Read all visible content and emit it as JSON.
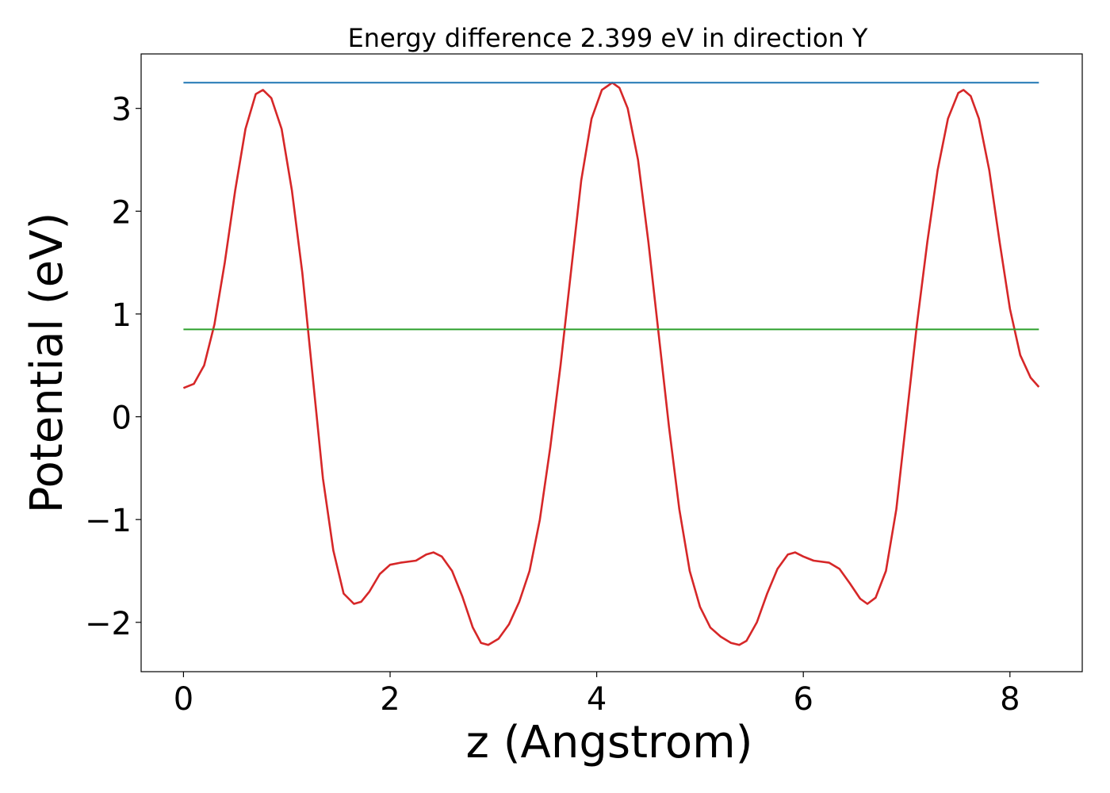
{
  "chart_data": {
    "type": "line",
    "title": "Energy difference 2.399 eV in direction Y",
    "xlabel": "z (Angstrom)",
    "ylabel": "Potential (eV)",
    "xlim": [
      -0.41,
      8.7
    ],
    "ylim": [
      -2.48,
      3.53
    ],
    "xticks": [
      {
        "value": 0,
        "label": "0"
      },
      {
        "value": 2,
        "label": "2"
      },
      {
        "value": 4,
        "label": "4"
      },
      {
        "value": 6,
        "label": "6"
      },
      {
        "value": 8,
        "label": "8"
      }
    ],
    "yticks": [
      {
        "value": -2,
        "label": "−2"
      },
      {
        "value": -1,
        "label": "−1"
      },
      {
        "value": 0,
        "label": "0"
      },
      {
        "value": 1,
        "label": "1"
      },
      {
        "value": 2,
        "label": "2"
      },
      {
        "value": 3,
        "label": "3"
      }
    ],
    "grid": false,
    "series": [
      {
        "color": "#d62728",
        "points": [
          [
            0.0,
            0.28
          ],
          [
            0.1,
            0.32
          ],
          [
            0.2,
            0.5
          ],
          [
            0.3,
            0.9
          ],
          [
            0.4,
            1.5
          ],
          [
            0.5,
            2.2
          ],
          [
            0.6,
            2.8
          ],
          [
            0.7,
            3.14
          ],
          [
            0.77,
            3.18
          ],
          [
            0.85,
            3.1
          ],
          [
            0.95,
            2.8
          ],
          [
            1.05,
            2.2
          ],
          [
            1.15,
            1.4
          ],
          [
            1.25,
            0.4
          ],
          [
            1.35,
            -0.6
          ],
          [
            1.45,
            -1.3
          ],
          [
            1.55,
            -1.72
          ],
          [
            1.65,
            -1.82
          ],
          [
            1.72,
            -1.8
          ],
          [
            1.8,
            -1.7
          ],
          [
            1.9,
            -1.53
          ],
          [
            2.0,
            -1.44
          ],
          [
            2.1,
            -1.42
          ],
          [
            2.25,
            -1.4
          ],
          [
            2.35,
            -1.34
          ],
          [
            2.42,
            -1.32
          ],
          [
            2.5,
            -1.36
          ],
          [
            2.6,
            -1.5
          ],
          [
            2.7,
            -1.75
          ],
          [
            2.8,
            -2.05
          ],
          [
            2.88,
            -2.2
          ],
          [
            2.95,
            -2.22
          ],
          [
            3.05,
            -2.16
          ],
          [
            3.15,
            -2.02
          ],
          [
            3.25,
            -1.8
          ],
          [
            3.35,
            -1.5
          ],
          [
            3.45,
            -1.0
          ],
          [
            3.55,
            -0.3
          ],
          [
            3.65,
            0.5
          ],
          [
            3.75,
            1.4
          ],
          [
            3.85,
            2.3
          ],
          [
            3.95,
            2.9
          ],
          [
            4.05,
            3.18
          ],
          [
            4.15,
            3.25
          ],
          [
            4.22,
            3.2
          ],
          [
            4.3,
            3.0
          ],
          [
            4.4,
            2.5
          ],
          [
            4.5,
            1.7
          ],
          [
            4.6,
            0.8
          ],
          [
            4.7,
            -0.1
          ],
          [
            4.8,
            -0.9
          ],
          [
            4.9,
            -1.5
          ],
          [
            5.0,
            -1.85
          ],
          [
            5.1,
            -2.05
          ],
          [
            5.2,
            -2.14
          ],
          [
            5.3,
            -2.2
          ],
          [
            5.38,
            -2.22
          ],
          [
            5.45,
            -2.18
          ],
          [
            5.55,
            -2.0
          ],
          [
            5.65,
            -1.72
          ],
          [
            5.75,
            -1.48
          ],
          [
            5.85,
            -1.34
          ],
          [
            5.92,
            -1.32
          ],
          [
            6.0,
            -1.36
          ],
          [
            6.1,
            -1.4
          ],
          [
            6.25,
            -1.42
          ],
          [
            6.35,
            -1.48
          ],
          [
            6.45,
            -1.62
          ],
          [
            6.55,
            -1.77
          ],
          [
            6.62,
            -1.82
          ],
          [
            6.7,
            -1.76
          ],
          [
            6.8,
            -1.5
          ],
          [
            6.9,
            -0.9
          ],
          [
            7.0,
            0.0
          ],
          [
            7.1,
            0.9
          ],
          [
            7.2,
            1.7
          ],
          [
            7.3,
            2.4
          ],
          [
            7.4,
            2.9
          ],
          [
            7.5,
            3.15
          ],
          [
            7.55,
            3.18
          ],
          [
            7.62,
            3.12
          ],
          [
            7.7,
            2.9
          ],
          [
            7.8,
            2.4
          ],
          [
            7.9,
            1.7
          ],
          [
            8.0,
            1.05
          ],
          [
            8.1,
            0.6
          ],
          [
            8.2,
            0.38
          ],
          [
            8.28,
            0.29
          ]
        ]
      },
      {
        "color": "#1f77b4",
        "points": [
          [
            0.0,
            3.25
          ],
          [
            8.28,
            3.25
          ]
        ]
      },
      {
        "color": "#2ca02c",
        "points": [
          [
            0.0,
            0.85
          ],
          [
            8.28,
            0.85
          ]
        ]
      }
    ]
  }
}
